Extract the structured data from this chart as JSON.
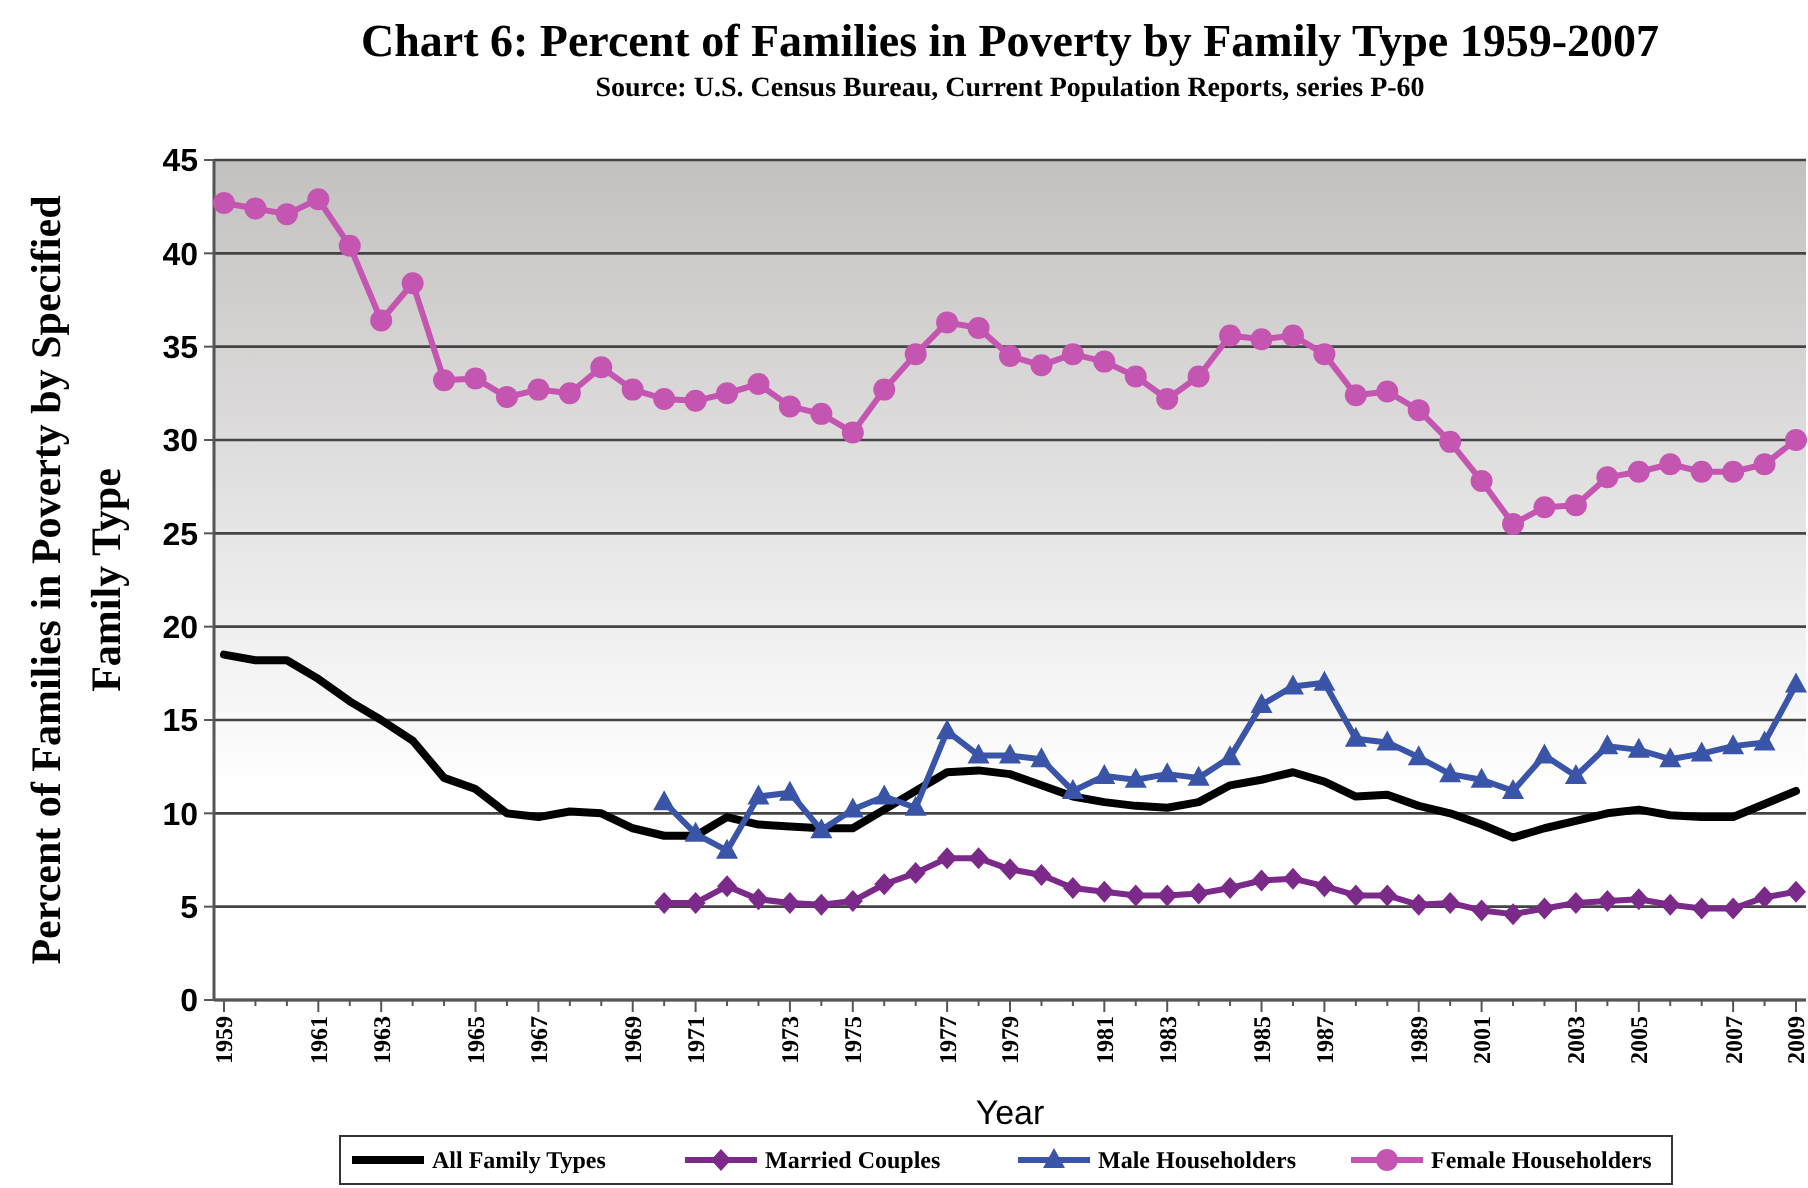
{
  "chart_data": {
    "type": "line",
    "title": "Chart 6: Percent of Families in Poverty by Family Type 1959-2007",
    "subtitle": "Source: U.S. Census Bureau, Current Population Reports, series P-60",
    "xlabel": "Year",
    "ylabel": "Percent of Families in Poverty by Specified Family Type",
    "categories": [
      "1959",
      null,
      null,
      "1961",
      null,
      "1963",
      null,
      null,
      "1965",
      null,
      "1967",
      null,
      null,
      "1969",
      null,
      "1971",
      null,
      null,
      "1973",
      null,
      "1975",
      null,
      null,
      "1977",
      null,
      "1979",
      null,
      null,
      "1981",
      null,
      "1983",
      null,
      null,
      "1985",
      null,
      "1987",
      null,
      null,
      "1989",
      null,
      "2001",
      null,
      null,
      "2003",
      null,
      "2005",
      null,
      null,
      "2007",
      null,
      "2009"
    ],
    "ylim": [
      0,
      45
    ],
    "yticks": [
      0,
      5,
      10,
      15,
      20,
      25,
      30,
      35,
      40,
      45
    ],
    "grid": "y",
    "legend": "bottom",
    "series": [
      {
        "name": "All Family Types",
        "color": "#000000",
        "marker": "none",
        "values": [
          18.5,
          18.2,
          18.2,
          17.2,
          16.0,
          15.0,
          13.9,
          11.9,
          11.3,
          10.0,
          9.8,
          10.1,
          10.0,
          9.2,
          8.8,
          8.8,
          9.8,
          9.4,
          9.3,
          9.2,
          9.2,
          10.2,
          11.2,
          12.2,
          12.3,
          12.1,
          11.5,
          10.9,
          10.6,
          10.4,
          10.3,
          10.6,
          11.5,
          11.8,
          12.2,
          11.7,
          10.9,
          11.0,
          10.4,
          10.0,
          9.4,
          8.7,
          9.2,
          9.6,
          10.0,
          10.2,
          9.9,
          9.8,
          9.8,
          10.5,
          11.2
        ]
      },
      {
        "name": "Married Couples",
        "color": "#7b2a8a",
        "marker": "diamond",
        "values": [
          null,
          null,
          null,
          null,
          null,
          null,
          null,
          null,
          null,
          null,
          null,
          null,
          null,
          null,
          5.2,
          5.2,
          6.1,
          5.4,
          5.2,
          5.1,
          5.3,
          6.2,
          6.8,
          7.6,
          7.6,
          7.0,
          6.7,
          6.0,
          5.8,
          5.6,
          5.6,
          5.7,
          6.0,
          6.4,
          6.5,
          6.1,
          5.6,
          5.6,
          5.1,
          5.2,
          4.8,
          4.6,
          4.9,
          5.2,
          5.3,
          5.4,
          5.1,
          4.9,
          4.9,
          5.5,
          5.8
        ]
      },
      {
        "name": "Male Householders",
        "color": "#3a55a8",
        "marker": "triangle",
        "values": [
          null,
          null,
          null,
          null,
          null,
          null,
          null,
          null,
          null,
          null,
          null,
          null,
          null,
          null,
          10.6,
          8.9,
          8.0,
          10.9,
          11.1,
          9.1,
          10.2,
          10.9,
          10.3,
          14.4,
          13.1,
          13.1,
          12.9,
          11.2,
          12.0,
          11.8,
          12.1,
          11.9,
          13.0,
          15.8,
          16.8,
          17.0,
          14.0,
          13.8,
          13.0,
          12.1,
          11.8,
          11.2,
          13.1,
          12.0,
          13.6,
          13.4,
          12.9,
          13.2,
          13.6,
          13.8,
          16.9
        ]
      },
      {
        "name": "Female Householders",
        "color": "#c455b0",
        "marker": "circle",
        "values": [
          42.7,
          42.4,
          42.1,
          42.9,
          40.4,
          36.4,
          38.4,
          33.2,
          33.3,
          32.3,
          32.7,
          32.5,
          33.9,
          32.7,
          32.2,
          32.1,
          32.5,
          33.0,
          31.8,
          31.4,
          30.4,
          32.7,
          34.6,
          36.3,
          36.0,
          34.5,
          34.0,
          34.6,
          34.2,
          33.4,
          32.2,
          33.4,
          35.6,
          35.4,
          35.6,
          34.6,
          32.4,
          32.6,
          31.6,
          29.9,
          27.8,
          25.5,
          26.4,
          26.5,
          28.0,
          28.3,
          28.7,
          28.3,
          28.3,
          28.7,
          30.0
        ]
      }
    ]
  }
}
